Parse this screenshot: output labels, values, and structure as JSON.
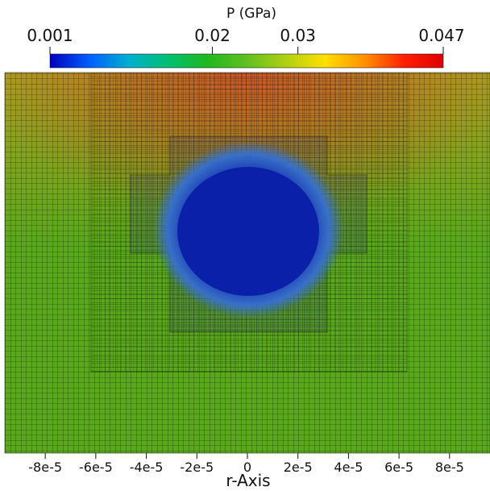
{
  "colorbar": {
    "title": "P (GPa)",
    "range": [
      0.001,
      0.047
    ],
    "ticks": [
      {
        "value": 0.02,
        "label": "0.02"
      },
      {
        "value": 0.03,
        "label": "0.03"
      }
    ],
    "min_label": "0.001",
    "max_label": "0.047",
    "colormap": [
      "#0000c0",
      "#0060ff",
      "#00b0d0",
      "#00c070",
      "#20b820",
      "#60c020",
      "#b0d010",
      "#ffe000",
      "#ff9000",
      "#ff2000",
      "#e00000"
    ]
  },
  "x_axis": {
    "label": "r-Axis",
    "range": [
      -9.6e-05,
      9.6e-05
    ],
    "ticks": [
      {
        "value": -8e-05,
        "label": "-8e-5"
      },
      {
        "value": -6e-05,
        "label": "-6e-5"
      },
      {
        "value": -4e-05,
        "label": "-4e-5"
      },
      {
        "value": -2e-05,
        "label": "-2e-5"
      },
      {
        "value": 0,
        "label": "0"
      },
      {
        "value": 2e-05,
        "label": "2e-5"
      },
      {
        "value": 4e-05,
        "label": "4e-5"
      },
      {
        "value": 6e-05,
        "label": "6e-5"
      },
      {
        "value": 8e-05,
        "label": "8e-5"
      }
    ]
  },
  "field": {
    "background_color": "#5aa81c",
    "upper_color": "#a8a020",
    "peak_color": "#c85828",
    "bubble_color": "#0a20a8",
    "bubble_edge_color": "#3870c8"
  }
}
